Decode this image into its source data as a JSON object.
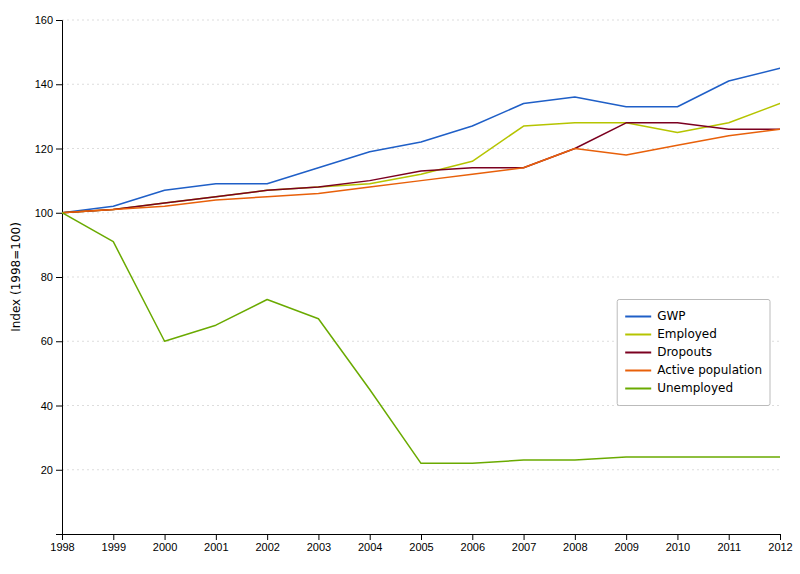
{
  "chart_data": {
    "type": "line",
    "y_label": "Index (1998=100)",
    "x": [
      1998,
      1999,
      2000,
      2001,
      2002,
      2003,
      2004,
      2005,
      2006,
      2007,
      2008,
      2009,
      2010,
      2011,
      2012
    ],
    "xlim": [
      1998,
      2012
    ],
    "xticks": [
      1998,
      1999,
      2000,
      2001,
      2002,
      2003,
      2004,
      2005,
      2006,
      2007,
      2008,
      2009,
      2010,
      2011,
      2012
    ],
    "ylim": [
      0,
      160
    ],
    "yticks": [
      20,
      40,
      60,
      80,
      100,
      120,
      140,
      160
    ],
    "grid": true,
    "legend": "lower right",
    "series": [
      {
        "name": "GWP",
        "color": "#1f5fc7",
        "values": [
          100,
          102,
          107,
          109,
          109,
          114,
          119,
          122,
          127,
          134,
          136,
          133,
          133,
          141,
          145
        ]
      },
      {
        "name": "Employed",
        "color": "#b5c400",
        "values": [
          100,
          101,
          103,
          105,
          107,
          108,
          109,
          112,
          116,
          127,
          128,
          128,
          125,
          128,
          134
        ]
      },
      {
        "name": "Dropouts",
        "color": "#7b0020",
        "values": [
          100,
          101,
          103,
          105,
          107,
          108,
          110,
          113,
          114,
          114,
          120,
          128,
          128,
          126,
          126
        ]
      },
      {
        "name": "Active population",
        "color": "#e8600a",
        "values": [
          100,
          101,
          102,
          104,
          105,
          106,
          108,
          110,
          112,
          114,
          120,
          118,
          121,
          124,
          126
        ]
      },
      {
        "name": "Unemployed",
        "color": "#6aaa00",
        "values": [
          100,
          91,
          60,
          65,
          73,
          67,
          45,
          22,
          22,
          23,
          23,
          24,
          24,
          24,
          24
        ]
      }
    ]
  }
}
